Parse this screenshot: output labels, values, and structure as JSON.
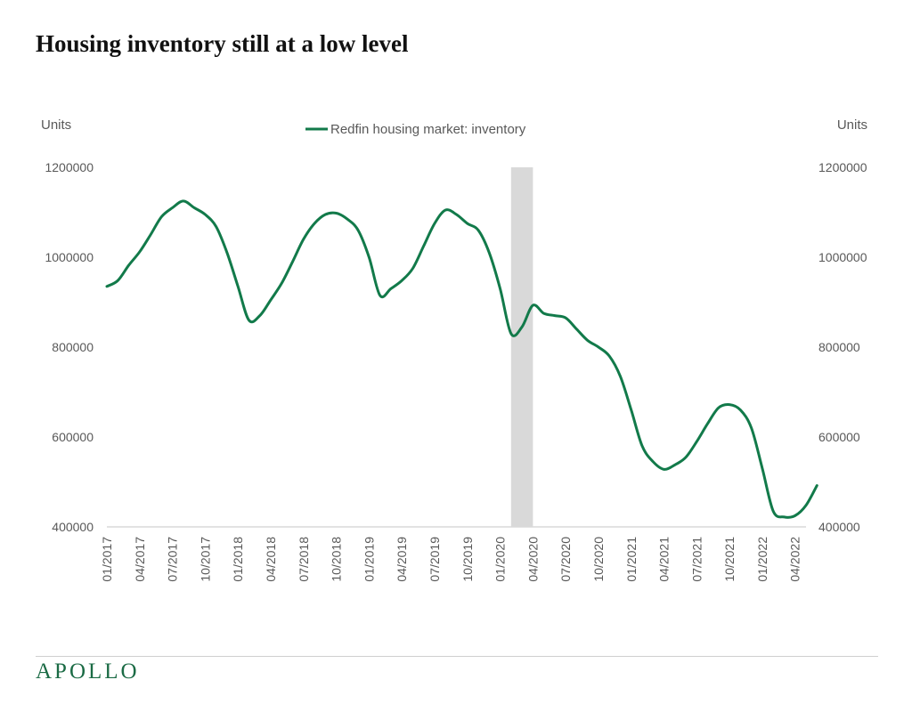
{
  "title": "Housing inventory still at a low level",
  "brand": {
    "name": "APOLLO",
    "color": "#1b6b45"
  },
  "colors": {
    "line": "#127a4a",
    "shade": "#d9d9d9",
    "axis": "#d9d9d9",
    "text": "#595959"
  },
  "chart_data": {
    "type": "line",
    "title": "",
    "legend": {
      "position": "top-center"
    },
    "grid": false,
    "axes": {
      "left": {
        "label": "Units",
        "ticks": [
          "400000",
          "600000",
          "800000",
          "1000000",
          "1200000"
        ],
        "range": [
          400000,
          1200000
        ]
      },
      "right": {
        "label": "Units",
        "ticks": [
          "400000",
          "600000",
          "800000",
          "1000000",
          "1200000"
        ],
        "range": [
          400000,
          1200000
        ]
      },
      "x": {
        "ticks": [
          "01/2017",
          "04/2017",
          "07/2017",
          "10/2017",
          "01/2018",
          "04/2018",
          "07/2018",
          "10/2018",
          "01/2019",
          "04/2019",
          "07/2019",
          "10/2019",
          "01/2020",
          "04/2020",
          "07/2020",
          "10/2020",
          "01/2021",
          "04/2021",
          "07/2021",
          "10/2021",
          "01/2022",
          "04/2022"
        ],
        "range": [
          "2017-01",
          "2022-05"
        ]
      }
    },
    "shaded_periods": [
      {
        "start": "2020-02",
        "end": "2020-04"
      }
    ],
    "series": [
      {
        "name": "Redfin housing market: inventory",
        "points": [
          [
            "2017-01",
            935000
          ],
          [
            "2017-02",
            948000
          ],
          [
            "2017-03",
            982000
          ],
          [
            "2017-04",
            1012000
          ],
          [
            "2017-05",
            1050000
          ],
          [
            "2017-06",
            1090000
          ],
          [
            "2017-07",
            1110000
          ],
          [
            "2017-08",
            1125000
          ],
          [
            "2017-09",
            1110000
          ],
          [
            "2017-10",
            1095000
          ],
          [
            "2017-11",
            1068000
          ],
          [
            "2017-12",
            1010000
          ],
          [
            "2018-01",
            935000
          ],
          [
            "2018-02",
            860000
          ],
          [
            "2018-03",
            870000
          ],
          [
            "2018-04",
            905000
          ],
          [
            "2018-05",
            942000
          ],
          [
            "2018-06",
            990000
          ],
          [
            "2018-07",
            1040000
          ],
          [
            "2018-08",
            1075000
          ],
          [
            "2018-09",
            1095000
          ],
          [
            "2018-10",
            1098000
          ],
          [
            "2018-11",
            1085000
          ],
          [
            "2018-12",
            1060000
          ],
          [
            "2019-01",
            1000000
          ],
          [
            "2019-02",
            915000
          ],
          [
            "2019-03",
            930000
          ],
          [
            "2019-04",
            948000
          ],
          [
            "2019-05",
            975000
          ],
          [
            "2019-06",
            1025000
          ],
          [
            "2019-07",
            1075000
          ],
          [
            "2019-08",
            1105000
          ],
          [
            "2019-09",
            1095000
          ],
          [
            "2019-10",
            1075000
          ],
          [
            "2019-11",
            1060000
          ],
          [
            "2019-12",
            1010000
          ],
          [
            "2020-01",
            930000
          ],
          [
            "2020-02",
            830000
          ],
          [
            "2020-03",
            845000
          ],
          [
            "2020-04",
            893000
          ],
          [
            "2020-05",
            875000
          ],
          [
            "2020-06",
            870000
          ],
          [
            "2020-07",
            865000
          ],
          [
            "2020-08",
            840000
          ],
          [
            "2020-09",
            815000
          ],
          [
            "2020-10",
            800000
          ],
          [
            "2020-11",
            780000
          ],
          [
            "2020-12",
            735000
          ],
          [
            "2021-01",
            660000
          ],
          [
            "2021-02",
            580000
          ],
          [
            "2021-03",
            545000
          ],
          [
            "2021-04",
            528000
          ],
          [
            "2021-05",
            538000
          ],
          [
            "2021-06",
            555000
          ],
          [
            "2021-07",
            590000
          ],
          [
            "2021-08",
            630000
          ],
          [
            "2021-09",
            665000
          ],
          [
            "2021-10",
            672000
          ],
          [
            "2021-11",
            660000
          ],
          [
            "2021-12",
            620000
          ],
          [
            "2022-01",
            530000
          ],
          [
            "2022-02",
            435000
          ],
          [
            "2022-03",
            422000
          ],
          [
            "2022-04",
            425000
          ],
          [
            "2022-05",
            448000
          ],
          [
            "2022-06",
            492000
          ]
        ]
      }
    ]
  }
}
